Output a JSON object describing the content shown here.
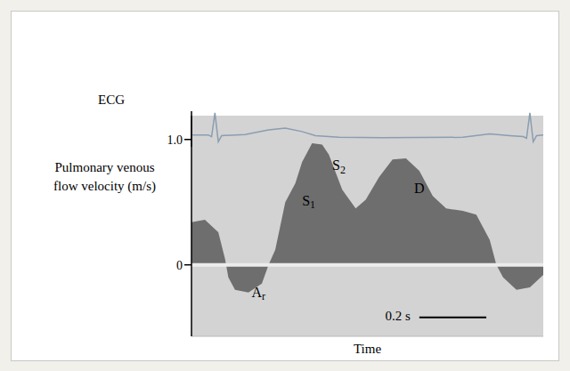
{
  "chart_data": [
    {
      "type": "line",
      "ylabel": "ECG",
      "color": "#8a9db0",
      "tick_labels": false,
      "xlim": [
        0,
        1.05
      ],
      "ylim": [
        0,
        1.05
      ],
      "x": [
        0,
        0.05,
        0.06,
        0.07,
        0.08,
        0.09,
        0.16,
        0.23,
        0.28,
        0.33,
        0.37,
        0.44,
        0.57,
        0.81,
        0.89,
        0.95,
        0.99,
        1.0,
        1.01,
        1.02,
        1.03,
        1.05
      ],
      "values": [
        0.35,
        0.35,
        0.3,
        1.0,
        0.15,
        0.33,
        0.36,
        0.5,
        0.55,
        0.45,
        0.33,
        0.28,
        0.27,
        0.28,
        0.38,
        0.33,
        0.3,
        0.25,
        1.0,
        0.15,
        0.33,
        0.35
      ]
    },
    {
      "type": "area",
      "ylabel": "Pulmonary venous flow velocity (m/s)",
      "xlabel": "Time",
      "color": "#6e6e6e",
      "tick_labels": "y",
      "xlim": [
        0,
        1.05
      ],
      "ylim": [
        -0.57,
        1.19
      ],
      "yticks": [
        0,
        {
          "value": 1,
          "label": "1.0"
        }
      ],
      "x": [
        0,
        0.04,
        0.08,
        0.1,
        0.11,
        0.13,
        0.17,
        0.21,
        0.23,
        0.25,
        0.28,
        0.31,
        0.33,
        0.36,
        0.39,
        0.41,
        0.45,
        0.49,
        0.52,
        0.56,
        0.6,
        0.64,
        0.68,
        0.72,
        0.76,
        0.81,
        0.85,
        0.89,
        0.91,
        0.93,
        0.97,
        1.01,
        1.05
      ],
      "values": [
        0.34,
        0.36,
        0.26,
        0.05,
        -0.1,
        -0.2,
        -0.22,
        -0.15,
        0,
        0.12,
        0.5,
        0.65,
        0.82,
        0.97,
        0.96,
        0.88,
        0.6,
        0.45,
        0.52,
        0.7,
        0.84,
        0.85,
        0.75,
        0.55,
        0.45,
        0.43,
        0.4,
        0.2,
        0,
        -0.1,
        -0.2,
        -0.18,
        -0.08
      ],
      "annotations": [
        {
          "text": "S1",
          "x": 0.35,
          "y": 0.5
        },
        {
          "text": "S2",
          "x": 0.44,
          "y": 0.78
        },
        {
          "text": "D",
          "x": 0.68,
          "y": 0.6
        },
        {
          "text": "Ar",
          "x": 0.2,
          "y": -0.23
        },
        {
          "text": "0.2 s",
          "x": 0.68,
          "y": -0.42,
          "length": 0.2
        }
      ]
    }
  ]
}
